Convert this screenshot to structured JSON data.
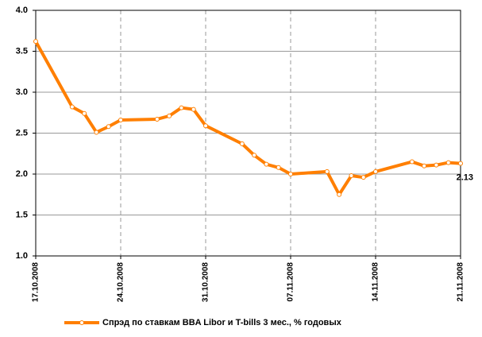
{
  "chart_data": {
    "type": "line",
    "x": [
      "17.10.2008",
      "20.10.2008",
      "21.10.2008",
      "22.10.2008",
      "23.10.2008",
      "24.10.2008",
      "27.10.2008",
      "28.10.2008",
      "29.10.2008",
      "30.10.2008",
      "31.10.2008",
      "03.11.2008",
      "04.11.2008",
      "05.11.2008",
      "06.11.2008",
      "07.11.2008",
      "10.11.2008",
      "11.11.2008",
      "12.11.2008",
      "13.11.2008",
      "14.11.2008",
      "17.11.2008",
      "18.11.2008",
      "19.11.2008",
      "20.11.2008",
      "21.11.2008"
    ],
    "series": [
      {
        "name": "Спрэд по ставкам BBA Libor и T-bills 3 мес., % годовых",
        "color": "#ff7f00",
        "values": [
          3.62,
          2.82,
          2.74,
          2.51,
          2.58,
          2.66,
          2.67,
          2.71,
          2.81,
          2.79,
          2.59,
          2.37,
          2.23,
          2.12,
          2.08,
          2.0,
          2.03,
          1.75,
          1.98,
          1.96,
          2.03,
          2.15,
          2.1,
          2.11,
          2.14,
          2.13
        ]
      }
    ],
    "xlim": [
      "17.10.2008",
      "21.11.2008"
    ],
    "xticks": [
      "17.10.2008",
      "24.10.2008",
      "31.10.2008",
      "07.11.2008",
      "14.11.2008",
      "21.11.2008"
    ],
    "ylim": [
      1.0,
      4.0
    ],
    "yticks": [
      {
        "value": 1.0,
        "label": "1.0"
      },
      {
        "value": 1.5,
        "label": "1.5"
      },
      {
        "value": 2.0,
        "label": "2.0"
      },
      {
        "value": 2.5,
        "label": "2.5"
      },
      {
        "value": 3.0,
        "label": "3.0"
      },
      {
        "value": 3.5,
        "label": "3.5"
      },
      {
        "value": 4.0,
        "label": "4.0"
      }
    ],
    "grid": true,
    "legend": "bottom"
  }
}
